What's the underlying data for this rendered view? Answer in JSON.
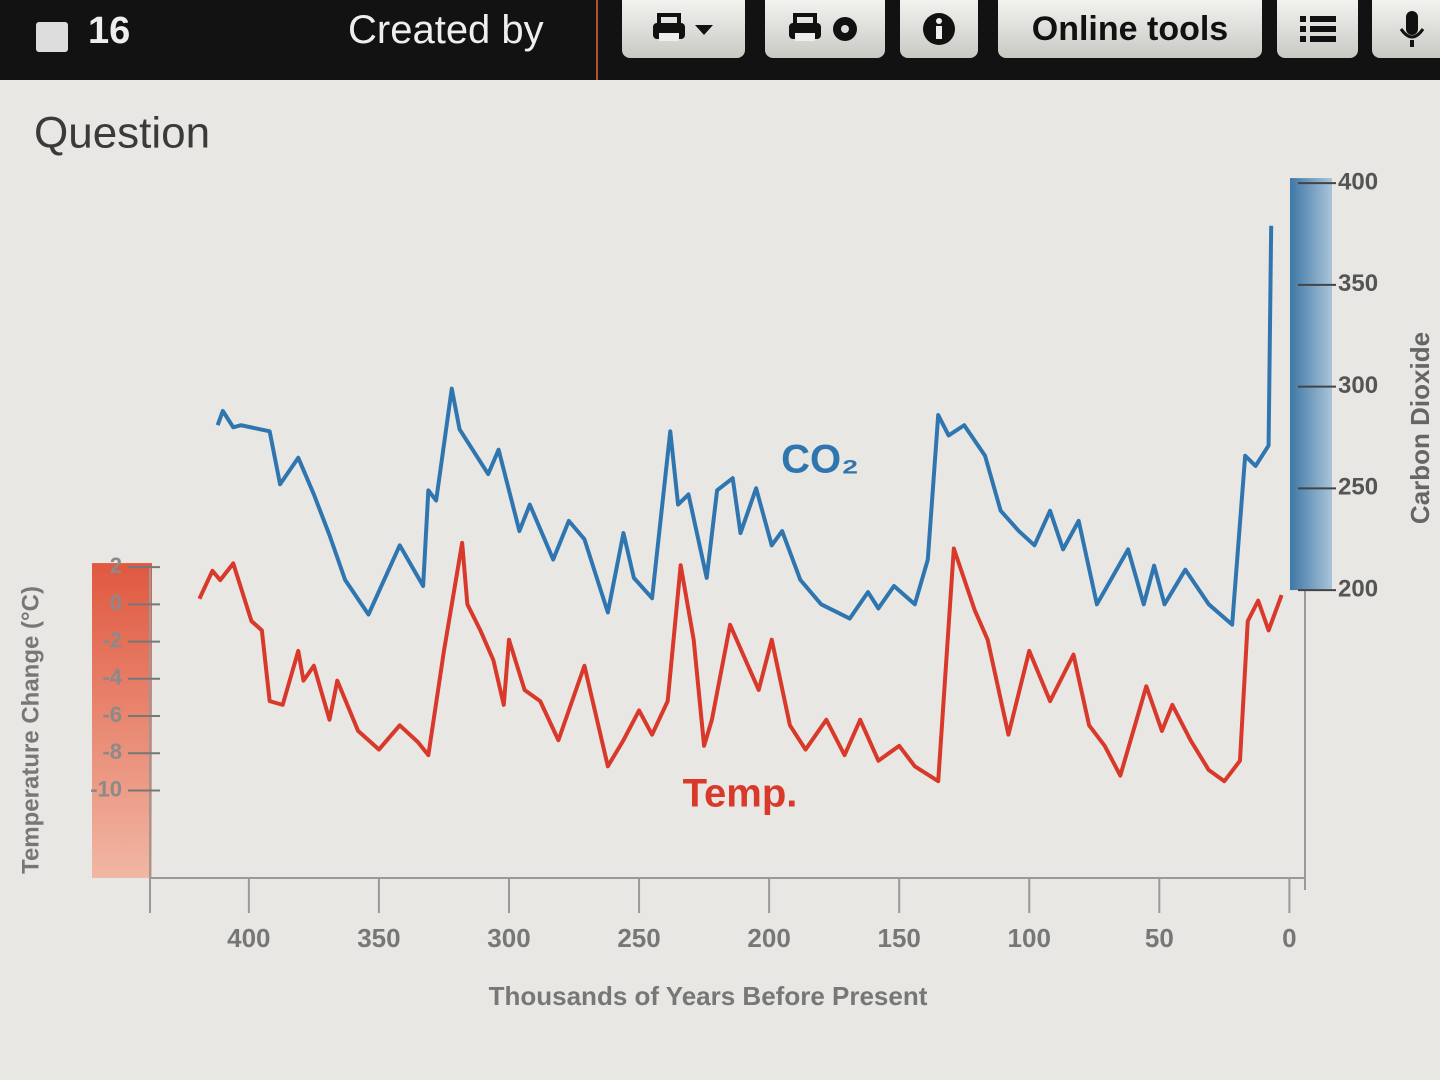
{
  "toolbar": {
    "number": "16",
    "created_by": "Created by",
    "online_tools": "Online tools"
  },
  "heading": "Question",
  "chart_data": {
    "type": "line",
    "x_label": "Thousands of Years Before Present",
    "y_label": "Temperature Change (°C)",
    "y2_label": "Carbon Dioxide",
    "xlim": [
      438,
      -6
    ],
    "xticks": [
      400,
      350,
      300,
      250,
      200,
      150,
      100,
      50,
      0
    ],
    "ylim": [
      -14.7,
      22.9
    ],
    "yticks": [
      2,
      0,
      -2,
      -4,
      -6,
      -8,
      -10
    ],
    "y2lim": [
      58.5,
      402.5
    ],
    "y2ticks": [
      400,
      350,
      300,
      250,
      200
    ],
    "series": [
      {
        "name": "CO₂",
        "color": "#2f76b0",
        "axis": "y2",
        "x": [
          412,
          410,
          406,
          403,
          392,
          388,
          381,
          375,
          369,
          363,
          354,
          348,
          342,
          333,
          331,
          328,
          322,
          319,
          315,
          308,
          304,
          296,
          292,
          283,
          277,
          271,
          262,
          256,
          252,
          245,
          238,
          235,
          231,
          224,
          220,
          214,
          211,
          205,
          199,
          195,
          188,
          180,
          169,
          162,
          158,
          152,
          144,
          139,
          135,
          131,
          125,
          117,
          111,
          104,
          98,
          92,
          87,
          81,
          74,
          62,
          56,
          52,
          48,
          40,
          31,
          22,
          17,
          13,
          8,
          7
        ],
        "values": [
          281,
          288,
          280,
          281,
          278,
          252,
          265,
          247,
          227,
          205,
          188,
          205,
          222,
          202,
          249,
          244,
          299,
          279,
          271,
          257,
          269,
          229,
          242,
          215,
          234,
          225,
          189,
          228,
          206,
          196,
          278,
          242,
          247,
          206,
          249,
          255,
          228,
          250,
          222,
          229,
          205,
          193,
          186,
          199,
          191,
          202,
          193,
          215,
          286,
          276,
          281,
          266,
          239,
          229,
          222,
          239,
          220,
          234,
          193,
          220,
          193,
          212,
          193,
          210,
          193,
          183,
          266,
          261,
          271,
          379
        ]
      },
      {
        "name": "Temp.",
        "color": "#d8392b",
        "axis": "y",
        "x": [
          419,
          414,
          411,
          406,
          399,
          395,
          392,
          387,
          381,
          379,
          375,
          369,
          366,
          358,
          350,
          342,
          335,
          331,
          325,
          318,
          316,
          311,
          306,
          302,
          300,
          294,
          288,
          281,
          271,
          262,
          256,
          250,
          245,
          239,
          234,
          229,
          225,
          222,
          215,
          210,
          204,
          199,
          192,
          186,
          178,
          171,
          165,
          158,
          150,
          144,
          135,
          129,
          121,
          116,
          108,
          100,
          92,
          83,
          77,
          71,
          65,
          55,
          49,
          45,
          38,
          31,
          25,
          19,
          16,
          12,
          8,
          3
        ],
        "values": [
          0.3,
          1.8,
          1.3,
          2.2,
          -0.9,
          -1.4,
          -5.2,
          -5.4,
          -2.5,
          -4.1,
          -3.3,
          -6.2,
          -4.1,
          -6.8,
          -7.8,
          -6.5,
          -7.4,
          -8.1,
          -2.5,
          3.3,
          0,
          -1.4,
          -3.0,
          -5.4,
          -1.9,
          -4.6,
          -5.2,
          -7.3,
          -3.3,
          -8.7,
          -7.3,
          -5.7,
          -7.0,
          -5.2,
          2.1,
          -1.9,
          -7.6,
          -6.2,
          -1.1,
          -2.7,
          -4.6,
          -1.9,
          -6.5,
          -7.8,
          -6.2,
          -8.1,
          -6.2,
          -8.4,
          -7.6,
          -8.7,
          -9.5,
          3.0,
          -0.3,
          -1.9,
          -7.0,
          -2.5,
          -5.2,
          -2.7,
          -6.5,
          -7.6,
          -9.2,
          -4.4,
          -6.8,
          -5.4,
          -7.3,
          -8.9,
          -9.5,
          -8.4,
          -0.9,
          0.2,
          -1.4,
          0.5
        ]
      }
    ]
  }
}
